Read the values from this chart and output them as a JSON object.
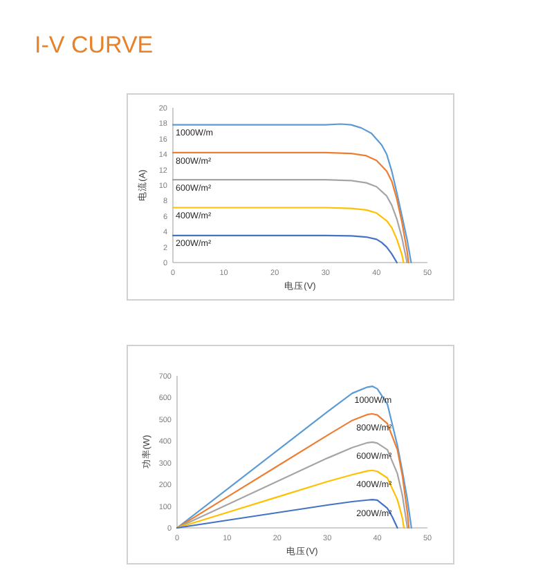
{
  "chart_data": [
    {
      "type": "line",
      "title": "I-V CURVE",
      "xlabel": "电压(V)",
      "ylabel": "电流(A)",
      "xlim": [
        0,
        50
      ],
      "ylim": [
        0,
        20
      ],
      "xticks": [
        0,
        10,
        20,
        30,
        40,
        50
      ],
      "yticks": [
        0,
        2,
        4,
        6,
        8,
        10,
        12,
        14,
        16,
        18,
        20
      ],
      "legend": false,
      "marker": "none",
      "line_style": "solid",
      "series": [
        {
          "name": "1000W/m",
          "color": "#5b9bd5",
          "x": [
            0,
            30,
            33,
            35,
            37,
            39,
            41,
            42,
            43,
            44,
            45,
            46,
            46.8
          ],
          "values": [
            17.8,
            17.8,
            17.9,
            17.8,
            17.4,
            16.7,
            15.2,
            14,
            11.8,
            9,
            6,
            3,
            0
          ]
        },
        {
          "name": "800W/m²",
          "color": "#ed7d31",
          "x": [
            0,
            30,
            35,
            38,
            40,
            42,
            43,
            44,
            45,
            46,
            46.3
          ],
          "values": [
            14.2,
            14.2,
            14.1,
            13.8,
            13.2,
            11.8,
            10.5,
            8.2,
            5.2,
            1.5,
            0
          ]
        },
        {
          "name": "600W/m²",
          "color": "#a5a5a5",
          "x": [
            0,
            30,
            35,
            38,
            40,
            42,
            43,
            44,
            45,
            46
          ],
          "values": [
            10.7,
            10.7,
            10.6,
            10.3,
            9.8,
            8.6,
            7.4,
            5.6,
            3.2,
            0
          ]
        },
        {
          "name": "400W/m²",
          "color": "#ffc000",
          "x": [
            0,
            30,
            35,
            38,
            40,
            42,
            43,
            44,
            45,
            45.3
          ],
          "values": [
            7.1,
            7.1,
            7.0,
            6.8,
            6.4,
            5.4,
            4.5,
            3,
            1,
            0
          ]
        },
        {
          "name": "200W/m²",
          "color": "#4472c4",
          "x": [
            0,
            30,
            35,
            38,
            40,
            41,
            42,
            43,
            44
          ],
          "values": [
            3.5,
            3.5,
            3.45,
            3.3,
            3.0,
            2.6,
            2.0,
            1.1,
            0
          ]
        }
      ]
    },
    {
      "type": "line",
      "xlabel": "电压(V)",
      "ylabel": "功率(W)",
      "xlim": [
        0,
        50
      ],
      "ylim": [
        0,
        700
      ],
      "xticks": [
        0,
        10,
        20,
        30,
        40,
        50
      ],
      "yticks": [
        0,
        100,
        200,
        300,
        400,
        500,
        600,
        700
      ],
      "legend": false,
      "marker": "none",
      "line_style": "solid",
      "series": [
        {
          "name": "1000W/m",
          "color": "#5b9bd5",
          "x": [
            0,
            10,
            20,
            30,
            35,
            38,
            39,
            40,
            42,
            44,
            45,
            46,
            46.8
          ],
          "values": [
            0,
            178,
            356,
            534,
            620,
            648,
            652,
            640,
            570,
            380,
            260,
            130,
            0
          ]
        },
        {
          "name": "800W/m²",
          "color": "#ed7d31",
          "x": [
            0,
            10,
            20,
            30,
            35,
            38,
            39,
            40,
            42,
            44,
            45,
            46,
            46.3
          ],
          "values": [
            0,
            142,
            284,
            426,
            495,
            522,
            525,
            520,
            480,
            360,
            240,
            70,
            0
          ]
        },
        {
          "name": "600W/m²",
          "color": "#a5a5a5",
          "x": [
            0,
            10,
            20,
            30,
            35,
            38,
            39,
            40,
            42,
            44,
            45,
            46
          ],
          "values": [
            0,
            107,
            214,
            321,
            370,
            392,
            395,
            390,
            360,
            250,
            150,
            0
          ]
        },
        {
          "name": "400W/m²",
          "color": "#ffc000",
          "x": [
            0,
            10,
            20,
            30,
            35,
            38,
            39,
            40,
            42,
            44,
            45,
            45.3
          ],
          "values": [
            0,
            71,
            142,
            213,
            245,
            262,
            265,
            260,
            230,
            130,
            45,
            0
          ]
        },
        {
          "name": "200W/m²",
          "color": "#4472c4",
          "x": [
            0,
            10,
            20,
            30,
            35,
            38,
            39,
            40,
            42,
            43,
            44
          ],
          "values": [
            0,
            35,
            70,
            105,
            121,
            128,
            130,
            128,
            90,
            50,
            0
          ]
        }
      ]
    }
  ]
}
